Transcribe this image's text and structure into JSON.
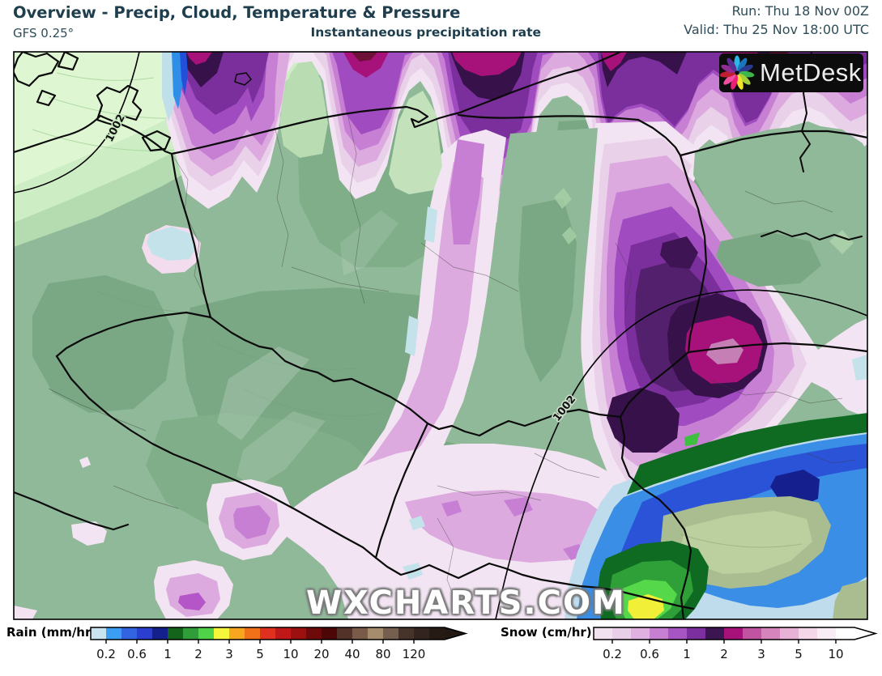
{
  "header": {
    "title": "Overview - Precip, Cloud, Temperature & Pressure",
    "model": "GFS 0.25°",
    "subtitle": "Instantaneous precipitation rate",
    "run": "Run: Thu 18 Nov 00Z",
    "valid": "Valid: Thu 25 Nov 18:00 UTC"
  },
  "map": {
    "watermark": "WXCHARTS.COM",
    "logo": {
      "text": "MetDesk",
      "background": "#0c0c0c",
      "petal_colors": [
        "#2bb6e8",
        "#1b75bc",
        "#2a3b8f",
        "#3cb54a",
        "#a6ce39",
        "#f2e32a",
        "#ec1e79",
        "#f04ea1",
        "#be1e2d",
        "#8e2d94",
        "#5c2d91"
      ]
    },
    "isobar_labels": [
      {
        "text": "1002"
      },
      {
        "text": "1002"
      }
    ]
  },
  "legend": {
    "rain": {
      "label": "Rain (mm/hr)",
      "ticks": [
        "0.2",
        "0.6",
        "1",
        "2",
        "3",
        "5",
        "10",
        "20",
        "40",
        "80",
        "120"
      ],
      "segment_colors": [
        "#c9e3f0",
        "#3b9ef2",
        "#3263e0",
        "#2a3ed0",
        "#14208c",
        "#15641c",
        "#2f9e38",
        "#4fd148",
        "#f5f53c",
        "#f6a71f",
        "#f07117",
        "#e03020",
        "#c01818",
        "#9c1010",
        "#6e0a0a",
        "#4c0606",
        "#533229",
        "#7a5a48",
        "#a48c6c",
        "#75604f",
        "#46332a"
      ],
      "overflow_colors": [
        "#332420",
        "#261a14"
      ],
      "tip_color": "#241812"
    },
    "snow": {
      "label": "Snow (cm/hr)",
      "ticks": [
        "0.2",
        "0.6",
        "1",
        "2",
        "3",
        "5",
        "10"
      ],
      "segment_colors": [
        "#f2e2f0",
        "#e9cfe8",
        "#dfb0e0",
        "#c77fd2",
        "#a855c4",
        "#7c2f9e",
        "#3c1650",
        "#a6127a",
        "#c054a0",
        "#d684bc",
        "#e7b2d6",
        "#f3d7e9",
        "#f8ecf5"
      ],
      "overflow_colors": [
        "#ffffff"
      ],
      "tip_color": "#ffffff"
    }
  }
}
